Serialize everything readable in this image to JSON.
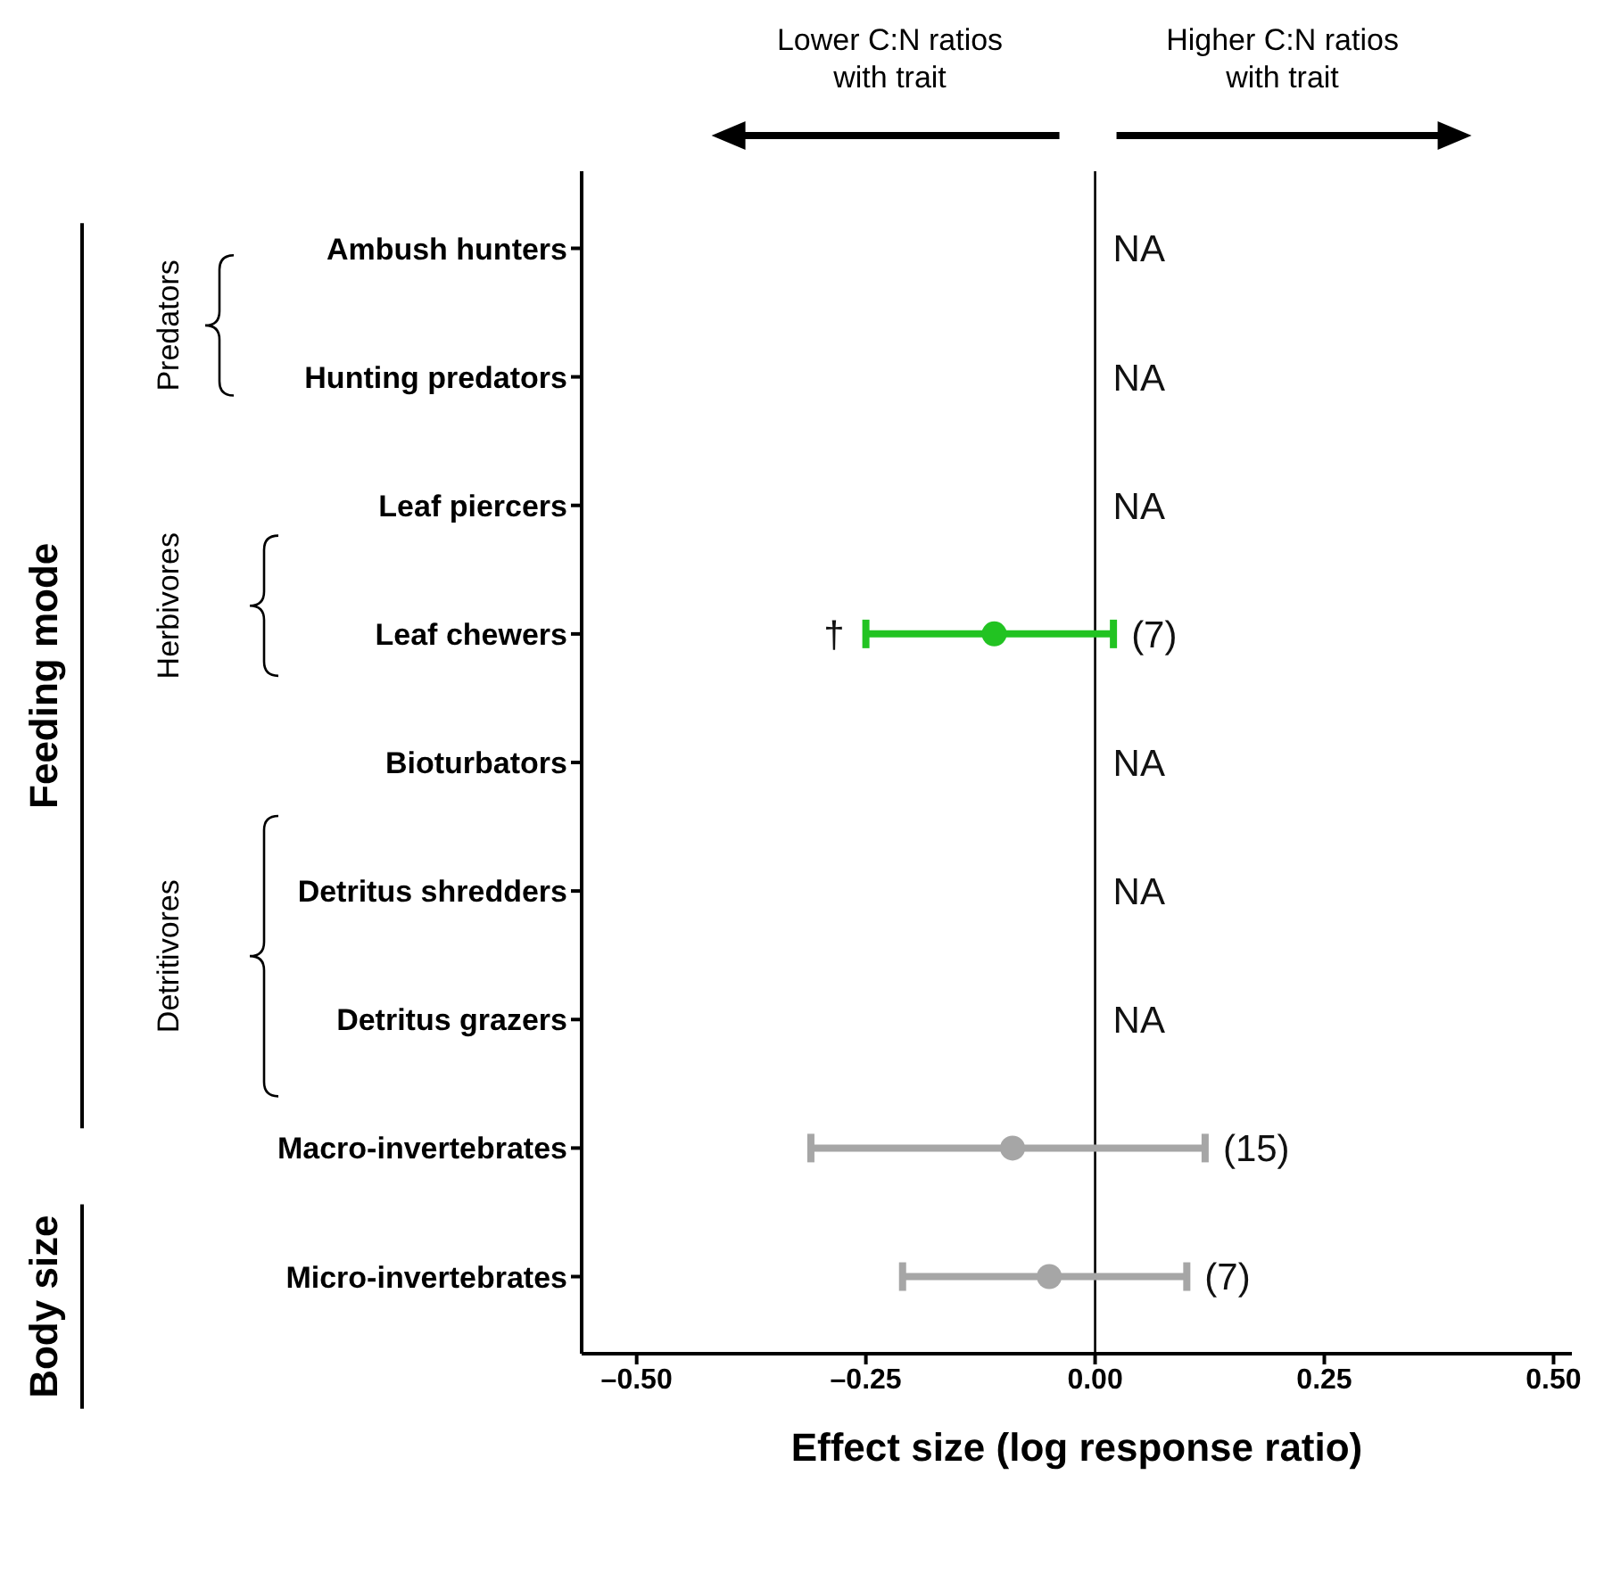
{
  "chart_data": {
    "type": "scatter",
    "orientation": "horizontal",
    "marker": "circle",
    "categories": [
      "Ambush hunters",
      "Hunting predators",
      "Leaf piercers",
      "Leaf chewers",
      "Bioturbators",
      "Detritus shredders",
      "Detritus grazers",
      "Macro-invertebrates",
      "Micro-invertebrates"
    ],
    "series": [
      {
        "color": "#22c322",
        "values": [
          null,
          null,
          null,
          -0.11,
          null,
          null,
          null,
          null,
          null
        ],
        "errors": [
          null,
          null,
          null,
          [
            -0.25,
            0.02
          ],
          null,
          null,
          null,
          null,
          null
        ]
      },
      {
        "color": "#a6a6a6",
        "values": [
          null,
          null,
          null,
          null,
          null,
          null,
          null,
          -0.09,
          -0.05
        ],
        "errors": [
          null,
          null,
          null,
          null,
          null,
          null,
          null,
          [
            -0.31,
            0.12
          ],
          [
            -0.21,
            0.1
          ]
        ]
      }
    ],
    "xlabel": "Effect size (log response ratio)",
    "xlim": [
      -0.56,
      0.52
    ],
    "xticks": [
      {
        "value": -0.5,
        "label": "–0.50"
      },
      {
        "value": -0.25,
        "label": "–0.25"
      },
      {
        "value": 0,
        "label": "0.00"
      },
      {
        "value": 0.25,
        "label": "0.25"
      },
      {
        "value": 0.5,
        "label": "0.50"
      }
    ],
    "ref_lines": [
      {
        "axis": "x",
        "value": 0,
        "color": "#000000"
      }
    ],
    "annotations": [
      "Lower C:N ratios with trait",
      "Higher C:N ratios with trait",
      "Predators",
      "Herbivores",
      "Detritivores",
      "Feeding mode",
      "Body size",
      {
        "text": "NA",
        "x": 0,
        "y": "Ambush hunters"
      },
      {
        "text": "NA",
        "x": 0,
        "y": "Hunting predators"
      },
      {
        "text": "NA",
        "x": 0,
        "y": "Leaf piercers"
      },
      {
        "text": "NA",
        "x": 0,
        "y": "Bioturbators"
      },
      {
        "text": "NA",
        "x": 0,
        "y": "Detritus shredders"
      },
      {
        "text": "NA",
        "x": 0,
        "y": "Detritus grazers"
      },
      {
        "text": "†",
        "x": -0.25,
        "y": "Leaf chewers"
      },
      {
        "text": "(7)",
        "x": 0.02,
        "y": "Leaf chewers"
      },
      {
        "text": "(15)",
        "x": 0.12,
        "y": "Macro-invertebrates"
      },
      {
        "text": "(7)",
        "x": 0.1,
        "y": "Micro-invertebrates"
      }
    ]
  }
}
